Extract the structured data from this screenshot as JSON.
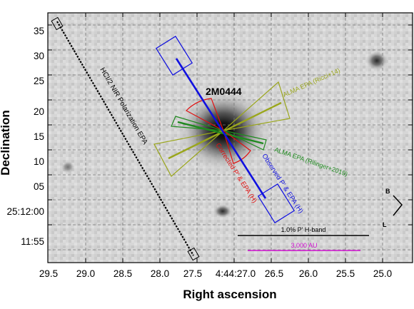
{
  "figure": {
    "x_axis_title": "Right ascension",
    "y_axis_title": "Declination",
    "x_ticks": [
      "29.5",
      "29.0",
      "28.5",
      "28.0",
      "27.5",
      "4:44:27.0",
      "26.5",
      "26.0",
      "25.5",
      "25.0"
    ],
    "y_ticks": [
      "35",
      "30",
      "25",
      "20",
      "15",
      "10",
      "05",
      "25:12:00",
      "11:55"
    ],
    "source_label": "2M0444",
    "labels": {
      "hci_epa": "HCI/2 NIR Polarization EPA",
      "alma_ricci": "ALMA EPA (Ricci+14)",
      "alma_rilinger": "ALMA EPA (Rilinger+2019)",
      "corrected": "Corrected P' & EPA (H)",
      "observed": "Observed P' & EPA (H)"
    },
    "scale_bars": {
      "polarization": "1.0% P' H-band",
      "distance": "3,000 AU"
    },
    "compass": {
      "north": "B",
      "east": "L"
    },
    "colors": {
      "hci": "#000000",
      "ricci": "#9aa61c",
      "rilinger": "#1f8a1f",
      "corrected": "#e01010",
      "observed": "#1010e0",
      "distance_bar": "#d010d0"
    }
  }
}
